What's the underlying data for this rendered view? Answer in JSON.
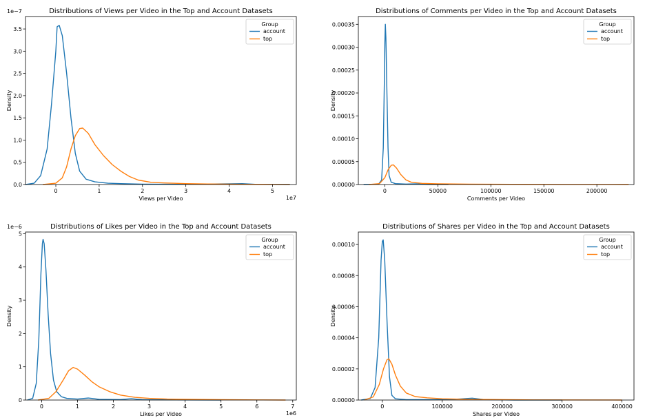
{
  "chart_data": [
    {
      "type": "line",
      "title": "Distributions of Views per Video in the Top and Account Datasets",
      "xlabel": "Views per Video",
      "ylabel": "Density",
      "x_offset_text": "1e7",
      "y_offset_text": "1e−7",
      "xlim": [
        -0.7,
        5.55
      ],
      "ylim": [
        0,
        3.78
      ],
      "xticks": [
        0,
        1,
        2,
        3,
        4,
        5
      ],
      "xtick_labels": [
        "0",
        "1",
        "2",
        "3",
        "4",
        "5"
      ],
      "yticks": [
        0,
        0.5,
        1.0,
        1.5,
        2.0,
        2.5,
        3.0,
        3.5
      ],
      "ytick_labels": [
        "0.0",
        "0.5",
        "1.0",
        "1.5",
        "2.0",
        "2.5",
        "3.0",
        "3.5"
      ],
      "legend": {
        "title": "Group",
        "position": "top-right"
      },
      "series": [
        {
          "name": "account",
          "color": "#1f77b4",
          "points": [
            [
              -0.7,
              0
            ],
            [
              -0.5,
              0.03
            ],
            [
              -0.35,
              0.2
            ],
            [
              -0.2,
              0.8
            ],
            [
              -0.1,
              1.8
            ],
            [
              0,
              3.0
            ],
            [
              0.03,
              3.55
            ],
            [
              0.08,
              3.58
            ],
            [
              0.15,
              3.35
            ],
            [
              0.25,
              2.5
            ],
            [
              0.35,
              1.5
            ],
            [
              0.45,
              0.7
            ],
            [
              0.55,
              0.3
            ],
            [
              0.7,
              0.12
            ],
            [
              0.9,
              0.06
            ],
            [
              1.2,
              0.03
            ],
            [
              1.5,
              0.02
            ],
            [
              2,
              0.01
            ],
            [
              3,
              0.004
            ],
            [
              4,
              0.015
            ],
            [
              4.3,
              0.02
            ],
            [
              4.6,
              0.005
            ],
            [
              5.4,
              0
            ]
          ]
        },
        {
          "name": "top",
          "color": "#ff7f0e",
          "points": [
            [
              -0.3,
              0
            ],
            [
              0,
              0.03
            ],
            [
              0.15,
              0.15
            ],
            [
              0.25,
              0.4
            ],
            [
              0.35,
              0.8
            ],
            [
              0.45,
              1.1
            ],
            [
              0.55,
              1.26
            ],
            [
              0.62,
              1.27
            ],
            [
              0.75,
              1.15
            ],
            [
              0.9,
              0.9
            ],
            [
              1.1,
              0.65
            ],
            [
              1.3,
              0.45
            ],
            [
              1.5,
              0.3
            ],
            [
              1.7,
              0.18
            ],
            [
              1.9,
              0.1
            ],
            [
              2.2,
              0.05
            ],
            [
              2.5,
              0.035
            ],
            [
              3,
              0.02
            ],
            [
              3.5,
              0.012
            ],
            [
              4,
              0.008
            ],
            [
              4.5,
              0.005
            ],
            [
              5,
              0.003
            ],
            [
              5.4,
              0.001
            ]
          ]
        }
      ]
    },
    {
      "type": "line",
      "title": "Distributions of Comments per Video in the Top and Account Datasets",
      "xlabel": "Comments per Video",
      "ylabel": "Density",
      "xlim": [
        -25000,
        235000
      ],
      "ylim": [
        0,
        0.000367
      ],
      "xticks": [
        0,
        50000,
        100000,
        150000,
        200000
      ],
      "xtick_labels": [
        "0",
        "50000",
        "100000",
        "150000",
        "200000"
      ],
      "yticks": [
        0,
        5e-05,
        0.0001,
        0.00015,
        0.0002,
        0.00025,
        0.0003,
        0.00035
      ],
      "ytick_labels": [
        "0.00000",
        "0.00005",
        "0.00010",
        "0.00015",
        "0.00020",
        "0.00025",
        "0.00030",
        "0.00035"
      ],
      "legend": {
        "title": "Group",
        "position": "top-right"
      },
      "series": [
        {
          "name": "account",
          "color": "#1f77b4",
          "points": [
            [
              -20000,
              0
            ],
            [
              -6000,
              5e-07
            ],
            [
              -3000,
              1e-05
            ],
            [
              -1500,
              8e-05
            ],
            [
              -500,
              0.00022
            ],
            [
              0,
              0.00031
            ],
            [
              500,
              0.00035
            ],
            [
              1000,
              0.00032
            ],
            [
              2000,
              0.0002
            ],
            [
              3000,
              8e-05
            ],
            [
              4000,
              2e-05
            ],
            [
              6000,
              5e-06
            ],
            [
              10000,
              2e-06
            ],
            [
              20000,
              1e-06
            ],
            [
              30000,
              1.5e-06
            ],
            [
              40000,
              0
            ],
            [
              60000,
              0
            ]
          ]
        },
        {
          "name": "top",
          "color": "#ff7f0e",
          "points": [
            [
              -15000,
              0
            ],
            [
              -5000,
              2e-06
            ],
            [
              0,
              1.5e-05
            ],
            [
              3000,
              3.2e-05
            ],
            [
              6000,
              4.2e-05
            ],
            [
              8000,
              4.3e-05
            ],
            [
              11000,
              3.6e-05
            ],
            [
              15000,
              2.2e-05
            ],
            [
              20000,
              1e-05
            ],
            [
              25000,
              5e-06
            ],
            [
              35000,
              2.5e-06
            ],
            [
              50000,
              1.5e-06
            ],
            [
              80000,
              8e-07
            ],
            [
              120000,
              4e-07
            ],
            [
              170000,
              2e-07
            ],
            [
              230000,
              0
            ]
          ]
        }
      ]
    },
    {
      "type": "line",
      "title": "Distributions of Likes per Video in the Top and Account Datasets",
      "xlabel": "Likes per Video",
      "ylabel": "Density",
      "x_offset_text": "1e6",
      "y_offset_text": "1e−6",
      "xlim": [
        -0.45,
        7.1
      ],
      "ylim": [
        0,
        5.05
      ],
      "xticks": [
        0,
        1,
        2,
        3,
        4,
        5,
        6,
        7
      ],
      "xtick_labels": [
        "0",
        "1",
        "2",
        "3",
        "4",
        "5",
        "6",
        "7"
      ],
      "yticks": [
        0,
        1,
        2,
        3,
        4,
        5
      ],
      "ytick_labels": [
        "0",
        "1",
        "2",
        "3",
        "4",
        "5"
      ],
      "legend": {
        "title": "Group",
        "position": "top-right"
      },
      "series": [
        {
          "name": "account",
          "color": "#1f77b4",
          "points": [
            [
              -0.4,
              0
            ],
            [
              -0.25,
              0.05
            ],
            [
              -0.15,
              0.5
            ],
            [
              -0.08,
              1.8
            ],
            [
              -0.02,
              3.8
            ],
            [
              0.02,
              4.7
            ],
            [
              0.04,
              4.83
            ],
            [
              0.07,
              4.7
            ],
            [
              0.12,
              3.9
            ],
            [
              0.18,
              2.6
            ],
            [
              0.25,
              1.4
            ],
            [
              0.33,
              0.6
            ],
            [
              0.42,
              0.25
            ],
            [
              0.55,
              0.1
            ],
            [
              0.7,
              0.05
            ],
            [
              1.0,
              0.03
            ],
            [
              1.3,
              0.06
            ],
            [
              1.6,
              0.02
            ],
            [
              2.2,
              0.015
            ],
            [
              2.5,
              0.04
            ],
            [
              2.8,
              0.01
            ],
            [
              3.5,
              0.005
            ],
            [
              5,
              0
            ]
          ]
        },
        {
          "name": "top",
          "color": "#ff7f0e",
          "points": [
            [
              -0.1,
              0
            ],
            [
              0.2,
              0.05
            ],
            [
              0.4,
              0.25
            ],
            [
              0.6,
              0.6
            ],
            [
              0.75,
              0.88
            ],
            [
              0.88,
              0.98
            ],
            [
              1.0,
              0.93
            ],
            [
              1.2,
              0.75
            ],
            [
              1.4,
              0.55
            ],
            [
              1.6,
              0.4
            ],
            [
              1.9,
              0.25
            ],
            [
              2.2,
              0.15
            ],
            [
              2.6,
              0.08
            ],
            [
              3,
              0.05
            ],
            [
              3.5,
              0.03
            ],
            [
              4,
              0.02
            ],
            [
              5,
              0.01
            ],
            [
              6,
              0.004
            ],
            [
              6.8,
              0.001
            ]
          ]
        }
      ]
    },
    {
      "type": "line",
      "title": "Distributions of Shares per Video in the Top and Account Datasets",
      "xlabel": "Shares per Video",
      "ylabel": "Density",
      "xlim": [
        -40000,
        420000
      ],
      "ylim": [
        0,
        0.000108
      ],
      "xticks": [
        0,
        100000,
        200000,
        300000,
        400000
      ],
      "xtick_labels": [
        "0",
        "100000",
        "200000",
        "300000",
        "400000"
      ],
      "yticks": [
        0,
        2e-05,
        4e-05,
        6e-05,
        8e-05,
        0.0001
      ],
      "ytick_labels": [
        "0.00000",
        "0.00002",
        "0.00004",
        "0.00006",
        "0.00008",
        "0.00010"
      ],
      "legend": {
        "title": "Group",
        "position": "top-right"
      },
      "series": [
        {
          "name": "account",
          "color": "#1f77b4",
          "points": [
            [
              -35000,
              0
            ],
            [
              -20000,
              1e-06
            ],
            [
              -12000,
              8e-06
            ],
            [
              -6000,
              4e-05
            ],
            [
              -2000,
              9e-05
            ],
            [
              0,
              0.000102
            ],
            [
              1500,
              0.000103
            ],
            [
              4000,
              9e-05
            ],
            [
              8000,
              5e-05
            ],
            [
              12000,
              1.5e-05
            ],
            [
              16000,
              3e-06
            ],
            [
              22000,
              8e-07
            ],
            [
              40000,
              2e-07
            ],
            [
              80000,
              2e-07
            ],
            [
              120000,
              5e-07
            ],
            [
              150000,
              1.2e-06
            ],
            [
              170000,
              3e-07
            ],
            [
              220000,
              0
            ],
            [
              300000,
              0
            ]
          ]
        },
        {
          "name": "top",
          "color": "#ff7f0e",
          "points": [
            [
              -30000,
              0
            ],
            [
              -15000,
              2e-06
            ],
            [
              -5000,
              1e-05
            ],
            [
              2000,
              2e-05
            ],
            [
              8000,
              2.6e-05
            ],
            [
              11000,
              2.65e-05
            ],
            [
              16000,
              2.3e-05
            ],
            [
              22000,
              1.6e-05
            ],
            [
              30000,
              9e-06
            ],
            [
              40000,
              4.5e-06
            ],
            [
              55000,
              2.2e-06
            ],
            [
              75000,
              1.4e-06
            ],
            [
              100000,
              8e-07
            ],
            [
              150000,
              4e-07
            ],
            [
              250000,
              1e-07
            ],
            [
              400000,
              0
            ]
          ]
        }
      ]
    }
  ]
}
